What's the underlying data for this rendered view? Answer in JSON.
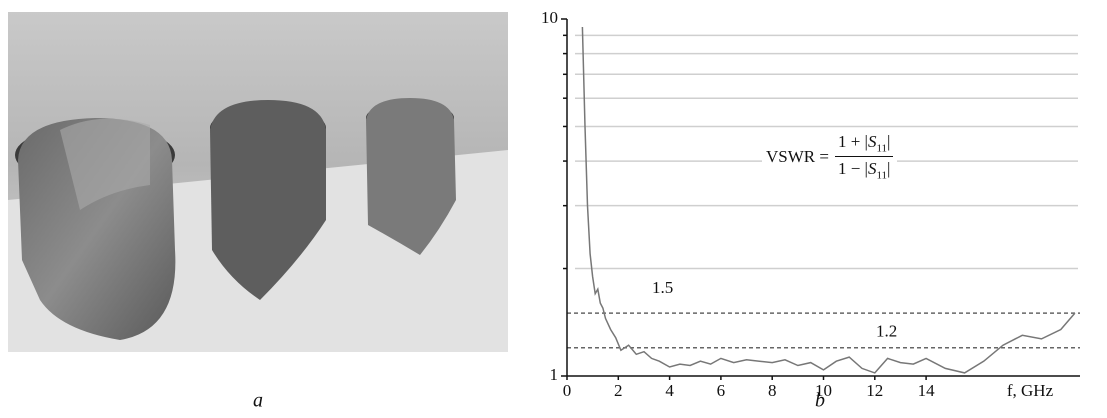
{
  "panel_labels": {
    "a": "a",
    "b": "b"
  },
  "chart_data": {
    "type": "line",
    "x": [
      0.6,
      0.7,
      0.8,
      0.9,
      1.0,
      1.1,
      1.2,
      1.3,
      1.4,
      1.5,
      1.7,
      1.9,
      2.1,
      2.4,
      2.7,
      3.0,
      3.3,
      3.6,
      4.0,
      4.4,
      4.8,
      5.2,
      5.6,
      6.0,
      6.5,
      7.0,
      7.5,
      8.0,
      8.5,
      9.0,
      9.5,
      10.0,
      10.5,
      11.0,
      11.5,
      12.0,
      12.5,
      13.0,
      13.5,
      14.0,
      14.75,
      15.5,
      16.25,
      17.0,
      17.75,
      18.5,
      19.25,
      19.8
    ],
    "values": [
      9.5,
      5,
      3,
      2.2,
      1.9,
      1.7,
      1.75,
      1.6,
      1.55,
      1.45,
      1.35,
      1.28,
      1.18,
      1.22,
      1.15,
      1.17,
      1.12,
      1.1,
      1.06,
      1.08,
      1.07,
      1.1,
      1.08,
      1.12,
      1.09,
      1.11,
      1.1,
      1.09,
      1.11,
      1.07,
      1.09,
      1.04,
      1.1,
      1.13,
      1.05,
      1.02,
      1.12,
      1.09,
      1.08,
      1.12,
      1.05,
      1.02,
      1.1,
      1.22,
      1.3,
      1.27,
      1.35,
      1.5
    ],
    "color": "#777777",
    "xlim": [
      0,
      20
    ],
    "xticks": [
      0,
      2,
      4,
      6,
      8,
      10,
      12,
      14
    ],
    "xlabel": "f, GHz",
    "ylim": [
      1,
      10
    ],
    "yticks": [
      1,
      10
    ],
    "y_minor_ticks": [
      2,
      3,
      4,
      5,
      6,
      7,
      8,
      9
    ],
    "yscale": "log",
    "grid": true,
    "reference_lines": [
      1.5,
      1.2
    ],
    "annotation": {
      "lhs": "VSWR =",
      "num_pre": "1 + |",
      "s": "S",
      "sub": "11",
      "post": "|",
      "den_pre": "1 − |"
    }
  }
}
